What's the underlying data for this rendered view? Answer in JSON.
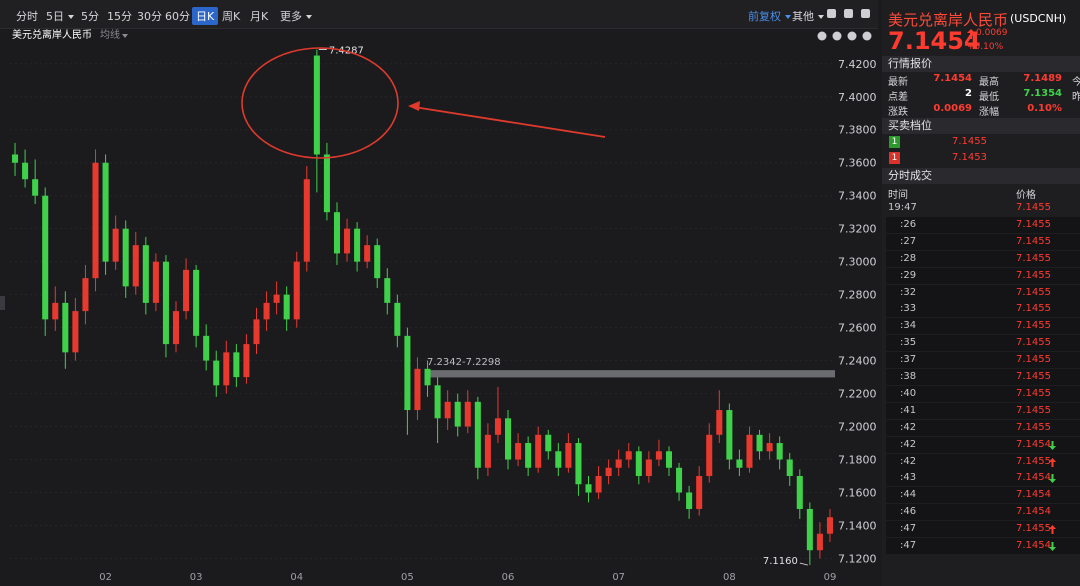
{
  "toolbar": {
    "tabs": [
      "分时",
      "5日",
      "5分",
      "15分",
      "30分",
      "60分",
      "日K",
      "周K",
      "月K",
      "更多"
    ],
    "dropdown_tabs": [
      1,
      9
    ],
    "selected_tab": 6,
    "right": [
      "前复权",
      "其他"
    ]
  },
  "chart_data": {
    "type": "candlestick",
    "title": "美元兑离岸人民币",
    "indicator": "均线",
    "up_color": "#e8392f",
    "down_color": "#3fd14a",
    "grid": true,
    "categories": [
      null,
      null,
      null,
      null,
      null,
      null,
      null,
      null,
      null,
      "02",
      null,
      null,
      null,
      null,
      null,
      null,
      null,
      null,
      "03",
      null,
      null,
      null,
      null,
      null,
      null,
      null,
      null,
      null,
      "04",
      null,
      null,
      null,
      null,
      null,
      null,
      null,
      null,
      null,
      null,
      "05",
      null,
      null,
      null,
      null,
      null,
      null,
      null,
      null,
      null,
      "06",
      null,
      null,
      null,
      null,
      null,
      null,
      null,
      null,
      null,
      null,
      "07",
      null,
      null,
      null,
      null,
      null,
      null,
      null,
      null,
      null,
      null,
      "08",
      null,
      null,
      null,
      null,
      null,
      null,
      null,
      null,
      null,
      "09"
    ],
    "ohlc": [
      [
        7.365,
        7.372,
        7.352,
        7.36
      ],
      [
        7.36,
        7.368,
        7.345,
        7.35
      ],
      [
        7.35,
        7.362,
        7.335,
        7.34
      ],
      [
        7.34,
        7.345,
        7.255,
        7.265
      ],
      [
        7.265,
        7.285,
        7.258,
        7.275
      ],
      [
        7.275,
        7.282,
        7.235,
        7.245
      ],
      [
        7.245,
        7.278,
        7.24,
        7.27
      ],
      [
        7.27,
        7.298,
        7.262,
        7.29
      ],
      [
        7.29,
        7.368,
        7.282,
        7.36
      ],
      [
        7.36,
        7.365,
        7.292,
        7.3
      ],
      [
        7.3,
        7.328,
        7.295,
        7.32
      ],
      [
        7.32,
        7.325,
        7.278,
        7.285
      ],
      [
        7.285,
        7.318,
        7.28,
        7.31
      ],
      [
        7.31,
        7.315,
        7.268,
        7.275
      ],
      [
        7.275,
        7.305,
        7.27,
        7.3
      ],
      [
        7.3,
        7.304,
        7.242,
        7.25
      ],
      [
        7.25,
        7.276,
        7.245,
        7.27
      ],
      [
        7.27,
        7.302,
        7.265,
        7.295
      ],
      [
        7.295,
        7.298,
        7.248,
        7.255
      ],
      [
        7.255,
        7.262,
        7.234,
        7.24
      ],
      [
        7.24,
        7.246,
        7.218,
        7.225
      ],
      [
        7.225,
        7.252,
        7.22,
        7.245
      ],
      [
        7.245,
        7.25,
        7.224,
        7.23
      ],
      [
        7.23,
        7.256,
        7.226,
        7.25
      ],
      [
        7.25,
        7.272,
        7.244,
        7.265
      ],
      [
        7.265,
        7.282,
        7.258,
        7.275
      ],
      [
        7.275,
        7.288,
        7.268,
        7.28
      ],
      [
        7.28,
        7.285,
        7.258,
        7.265
      ],
      [
        7.265,
        7.306,
        7.26,
        7.3
      ],
      [
        7.3,
        7.358,
        7.294,
        7.35
      ],
      [
        7.425,
        7.4287,
        7.342,
        7.365
      ],
      [
        7.365,
        7.372,
        7.325,
        7.33
      ],
      [
        7.33,
        7.336,
        7.298,
        7.305
      ],
      [
        7.305,
        7.326,
        7.3,
        7.32
      ],
      [
        7.32,
        7.324,
        7.294,
        7.3
      ],
      [
        7.3,
        7.316,
        7.296,
        7.31
      ],
      [
        7.31,
        7.314,
        7.284,
        7.29
      ],
      [
        7.29,
        7.296,
        7.268,
        7.275
      ],
      [
        7.275,
        7.28,
        7.248,
        7.255
      ],
      [
        7.255,
        7.26,
        7.195,
        7.21
      ],
      [
        7.21,
        7.242,
        7.204,
        7.235
      ],
      [
        7.235,
        7.24,
        7.218,
        7.225
      ],
      [
        7.225,
        7.23,
        7.19,
        7.205
      ],
      [
        7.205,
        7.222,
        7.198,
        7.215
      ],
      [
        7.215,
        7.22,
        7.194,
        7.2
      ],
      [
        7.2,
        7.222,
        7.196,
        7.215
      ],
      [
        7.215,
        7.218,
        7.168,
        7.175
      ],
      [
        7.175,
        7.202,
        7.17,
        7.195
      ],
      [
        7.195,
        7.224,
        7.19,
        7.205
      ],
      [
        7.205,
        7.21,
        7.174,
        7.18
      ],
      [
        7.18,
        7.196,
        7.176,
        7.19
      ],
      [
        7.19,
        7.194,
        7.17,
        7.175
      ],
      [
        7.175,
        7.2,
        7.172,
        7.195
      ],
      [
        7.195,
        7.198,
        7.18,
        7.185
      ],
      [
        7.185,
        7.19,
        7.17,
        7.175
      ],
      [
        7.175,
        7.196,
        7.172,
        7.19
      ],
      [
        7.19,
        7.193,
        7.158,
        7.165
      ],
      [
        7.165,
        7.17,
        7.154,
        7.16
      ],
      [
        7.16,
        7.176,
        7.156,
        7.17
      ],
      [
        7.17,
        7.18,
        7.165,
        7.175
      ],
      [
        7.175,
        7.186,
        7.17,
        7.18
      ],
      [
        7.18,
        7.19,
        7.175,
        7.185
      ],
      [
        7.185,
        7.188,
        7.165,
        7.17
      ],
      [
        7.17,
        7.185,
        7.166,
        7.18
      ],
      [
        7.18,
        7.192,
        7.176,
        7.185
      ],
      [
        7.185,
        7.188,
        7.17,
        7.175
      ],
      [
        7.175,
        7.178,
        7.155,
        7.16
      ],
      [
        7.16,
        7.164,
        7.144,
        7.15
      ],
      [
        7.15,
        7.176,
        7.146,
        7.17
      ],
      [
        7.17,
        7.202,
        7.166,
        7.195
      ],
      [
        7.195,
        7.222,
        7.19,
        7.21
      ],
      [
        7.21,
        7.214,
        7.174,
        7.18
      ],
      [
        7.18,
        7.186,
        7.17,
        7.175
      ],
      [
        7.175,
        7.2,
        7.172,
        7.195
      ],
      [
        7.195,
        7.198,
        7.18,
        7.185
      ],
      [
        7.185,
        7.196,
        7.18,
        7.19
      ],
      [
        7.19,
        7.194,
        7.174,
        7.18
      ],
      [
        7.18,
        7.184,
        7.164,
        7.17
      ],
      [
        7.17,
        7.174,
        7.144,
        7.15
      ],
      [
        7.15,
        7.154,
        7.116,
        7.125
      ],
      [
        7.125,
        7.142,
        7.12,
        7.135
      ],
      [
        7.135,
        7.15,
        7.13,
        7.145
      ]
    ],
    "high_index": 30,
    "low_index": 79,
    "low_label": "7.1160",
    "band": {
      "label": "7.2342-7.2298",
      "range": [
        7.2342,
        7.2298
      ],
      "color": "#6b6b72"
    },
    "ylim": [
      7.113,
      7.432
    ],
    "yticks": [
      {
        "value": 7.12,
        "label": "7.1200"
      },
      {
        "value": 7.14,
        "label": "7.1400"
      },
      {
        "value": 7.16,
        "label": "7.1600"
      },
      {
        "value": 7.18,
        "label": "7.1800"
      },
      {
        "value": 7.2,
        "label": "7.2000"
      },
      {
        "value": 7.22,
        "label": "7.2200"
      },
      {
        "value": 7.24,
        "label": "7.2400"
      },
      {
        "value": 7.26,
        "label": "7.2600"
      },
      {
        "value": 7.28,
        "label": "7.2800"
      },
      {
        "value": 7.3,
        "label": "7.3000"
      },
      {
        "value": 7.32,
        "label": "7.3200"
      },
      {
        "value": 7.34,
        "label": "7.3400"
      },
      {
        "value": 7.36,
        "label": "7.3600"
      },
      {
        "value": 7.38,
        "label": "7.3800"
      },
      {
        "value": 7.4,
        "label": "7.4000"
      },
      {
        "value": 7.42,
        "label": "7.4200"
      }
    ]
  },
  "quote": {
    "name": "美元兑离岸人民币",
    "code": "(USDCNH)",
    "price": "7.1454",
    "change": "0.0069",
    "change_pct": "+0.10%",
    "section_quote": "行情报价",
    "stats": [
      [
        {
          "label": "最新",
          "value": "7.1454",
          "color": "#ff3b30"
        },
        {
          "label": "最高",
          "value": "7.1489",
          "color": "#ff3b30"
        },
        {
          "label": "今"
        }
      ],
      [
        {
          "label": "点差",
          "value": "2",
          "color": "#ffffff"
        },
        {
          "label": "最低",
          "value": "7.1354",
          "color": "#3fd14a"
        },
        {
          "label": "昨"
        }
      ],
      [
        {
          "label": "涨跌",
          "value": "0.0069",
          "color": "#ff3b30"
        },
        {
          "label": "涨幅",
          "value": "0.10%",
          "color": "#ff3b30"
        }
      ]
    ],
    "section_book": "买卖档位",
    "book": [
      {
        "level": "1",
        "price": "7.1455",
        "badge": "#2e9a2e"
      },
      {
        "level": "1",
        "price": "7.1453",
        "badge": "#d9322a"
      }
    ],
    "section_trades": "分时成交",
    "trades_header": [
      "时间",
      "价格"
    ],
    "trades": [
      {
        "time": "19:47",
        "price": "7.1455"
      },
      {
        "time": ":26",
        "price": "7.1455"
      },
      {
        "time": ":27",
        "price": "7.1455"
      },
      {
        "time": ":28",
        "price": "7.1455"
      },
      {
        "time": ":29",
        "price": "7.1455"
      },
      {
        "time": ":32",
        "price": "7.1455"
      },
      {
        "time": ":33",
        "price": "7.1455"
      },
      {
        "time": ":34",
        "price": "7.1455"
      },
      {
        "time": ":35",
        "price": "7.1455"
      },
      {
        "time": ":37",
        "price": "7.1455"
      },
      {
        "time": ":38",
        "price": "7.1455"
      },
      {
        "time": ":40",
        "price": "7.1455"
      },
      {
        "time": ":41",
        "price": "7.1455"
      },
      {
        "time": ":42",
        "price": "7.1455"
      },
      {
        "time": ":42",
        "price": "7.1454",
        "dir": "down"
      },
      {
        "time": ":42",
        "price": "7.1455",
        "dir": "up"
      },
      {
        "time": ":43",
        "price": "7.1454",
        "dir": "down"
      },
      {
        "time": ":44",
        "price": "7.1454"
      },
      {
        "time": ":46",
        "price": "7.1454"
      },
      {
        "time": ":47",
        "price": "7.1455",
        "dir": "up"
      },
      {
        "time": ":47",
        "price": "7.1454",
        "dir": "down"
      }
    ]
  }
}
